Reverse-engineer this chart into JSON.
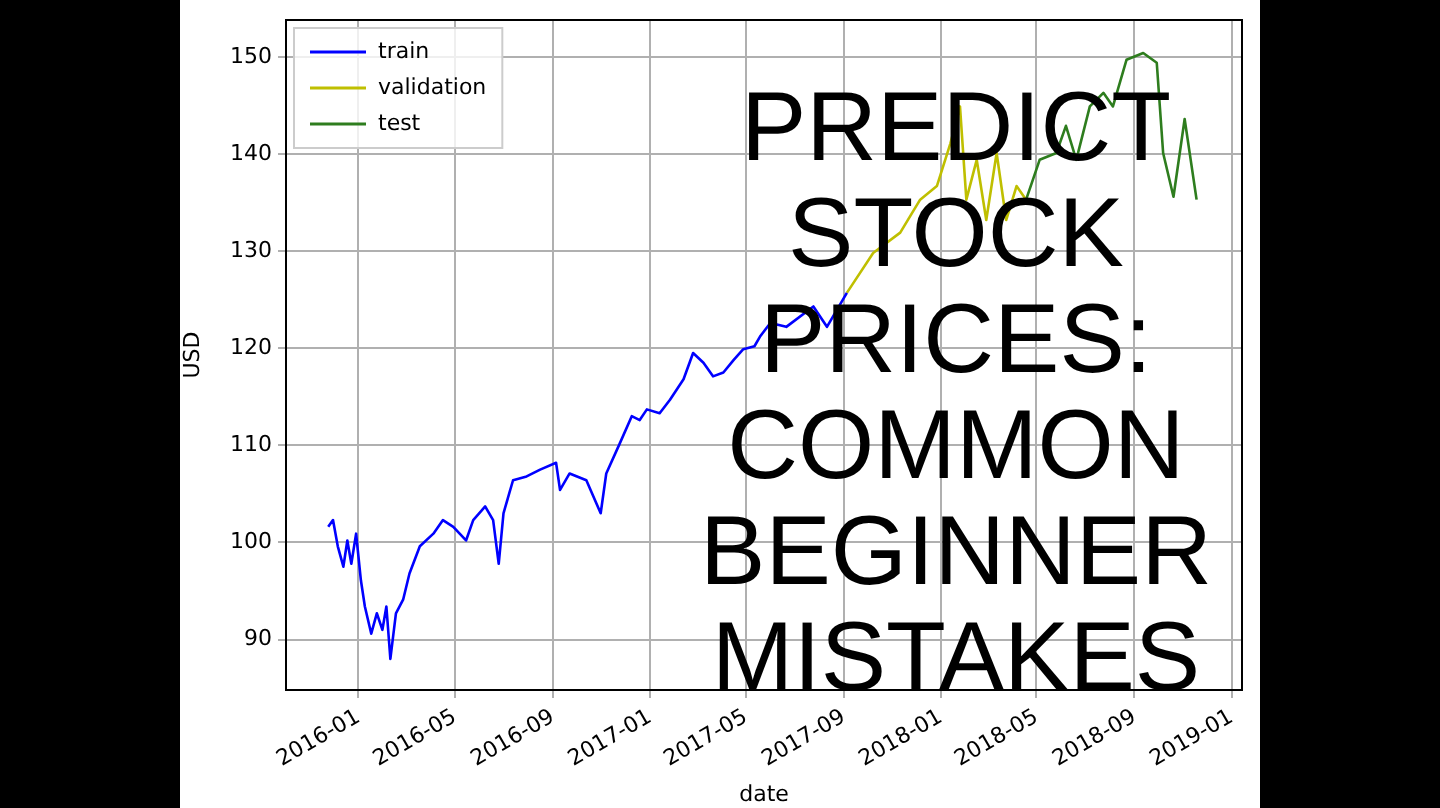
{
  "chart_data": {
    "type": "line",
    "title": "PREDICT\nSTOCK\nPRICES:\nCOMMON\nBEGINNER\nMISTAKES",
    "xlabel": "date",
    "ylabel": "USD",
    "xlim": [
      "2015-10-02",
      "2019-01-14"
    ],
    "xticks": [
      "2016-01",
      "2016-05",
      "2016-09",
      "2017-01",
      "2017-05",
      "2017-09",
      "2018-01",
      "2018-05",
      "2018-09",
      "2019-01"
    ],
    "ylim": [
      84.8,
      153.8
    ],
    "yticks": [
      90,
      100,
      110,
      120,
      130,
      140,
      150
    ],
    "grid": true,
    "legend": "top left",
    "marker": "none",
    "line_style": "solid",
    "series": [
      {
        "name": "train",
        "color": "#0000ff",
        "x": [
          "2015-11-24",
          "2015-11-30",
          "2015-12-06",
          "2015-12-13",
          "2015-12-18",
          "2015-12-23",
          "2015-12-29",
          "2016-01-04",
          "2016-01-09",
          "2016-01-17",
          "2016-01-24",
          "2016-01-31",
          "2016-02-05",
          "2016-02-10",
          "2016-02-17",
          "2016-02-26",
          "2016-03-05",
          "2016-03-18",
          "2016-04-04",
          "2016-04-16",
          "2016-04-29",
          "2016-05-15",
          "2016-05-24",
          "2016-06-08",
          "2016-06-18",
          "2016-06-25",
          "2016-07-01",
          "2016-07-13",
          "2016-07-30",
          "2016-08-16",
          "2016-09-05",
          "2016-09-10",
          "2016-09-22",
          "2016-10-13",
          "2016-10-31",
          "2016-11-07",
          "2016-11-24",
          "2016-12-09",
          "2016-12-19",
          "2016-12-28",
          "2017-01-13",
          "2017-01-26",
          "2017-02-12",
          "2017-02-24",
          "2017-03-09",
          "2017-03-21",
          "2017-04-03",
          "2017-04-16",
          "2017-04-28",
          "2017-05-12",
          "2017-05-19",
          "2017-06-01",
          "2017-06-21",
          "2017-07-25",
          "2017-08-11",
          "2017-09-05"
        ],
        "values": [
          101.6,
          102.3,
          99.6,
          97.5,
          100.2,
          97.8,
          100.9,
          96.1,
          93.4,
          90.6,
          92.7,
          91.0,
          93.4,
          88.0,
          92.7,
          94.1,
          96.8,
          99.6,
          100.9,
          102.3,
          101.6,
          100.2,
          102.3,
          103.7,
          102.3,
          97.8,
          103.0,
          106.4,
          106.8,
          107.5,
          108.2,
          105.4,
          107.1,
          106.4,
          103.0,
          107.1,
          110.2,
          113.0,
          112.6,
          113.7,
          113.3,
          114.7,
          116.8,
          119.5,
          118.5,
          117.1,
          117.5,
          118.8,
          119.9,
          120.2,
          121.2,
          122.6,
          122.2,
          124.3,
          122.2,
          125.7
        ]
      },
      {
        "name": "validation",
        "color": "#bfbf00",
        "x": [
          "2017-09-05",
          "2017-10-08",
          "2017-11-11",
          "2017-12-06",
          "2017-12-27",
          "2018-01-13",
          "2018-01-25",
          "2018-02-02",
          "2018-02-15",
          "2018-02-27",
          "2018-03-12",
          "2018-03-24",
          "2018-04-06",
          "2018-04-18"
        ],
        "values": [
          125.7,
          129.8,
          131.9,
          135.3,
          136.7,
          141.1,
          144.9,
          135.3,
          139.4,
          133.2,
          140.1,
          133.2,
          136.7,
          135.3
        ]
      },
      {
        "name": "test",
        "color": "#2e7d1e",
        "x": [
          "2018-04-18",
          "2018-05-05",
          "2018-05-26",
          "2018-06-07",
          "2018-06-20",
          "2018-07-07",
          "2018-07-24",
          "2018-08-05",
          "2018-08-22",
          "2018-09-12",
          "2018-09-29",
          "2018-10-07",
          "2018-10-20",
          "2018-11-03",
          "2018-11-18"
        ],
        "values": [
          135.3,
          139.4,
          140.1,
          142.9,
          139.4,
          144.9,
          146.3,
          144.9,
          149.7,
          150.4,
          149.4,
          140.1,
          135.6,
          143.6,
          135.3
        ]
      }
    ]
  }
}
